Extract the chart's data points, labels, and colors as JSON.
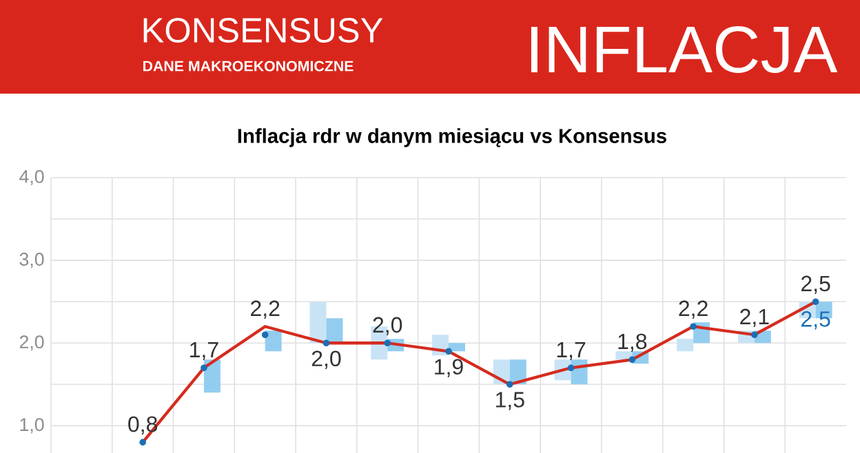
{
  "chart_data": {
    "type": "line",
    "title": "Inflacja rdr w danym miesiącu vs Konsensus",
    "annotations": [
      "KONSENSUSY",
      "DANE MAKROEKONOMICZNE",
      "INFLACJA"
    ],
    "categories": [
      null,
      null,
      null,
      null,
      null,
      null,
      null,
      null,
      null,
      null,
      null,
      null,
      null
    ],
    "ylim": [
      0.67,
      4.0
    ],
    "yticks": [
      {
        "value": 1,
        "label": "1,0"
      },
      {
        "value": 1.5,
        "label": null
      },
      {
        "value": 2,
        "label": "2,0"
      },
      {
        "value": 2.5,
        "label": null
      },
      {
        "value": 3,
        "label": "3,0"
      },
      {
        "value": 3.5,
        "label": null
      },
      {
        "value": 4,
        "label": "4,0"
      }
    ],
    "grid": true,
    "tick_labels": "y",
    "series": [
      {
        "type": "bar",
        "color": "#c9e3f6",
        "base": [
          null,
          null,
          null,
          null,
          2.0,
          1.8,
          1.85,
          1.5,
          1.55,
          1.8,
          1.9,
          2.0,
          2.3
        ],
        "values": [
          null,
          null,
          null,
          null,
          0.5,
          0.4,
          0.25,
          0.3,
          0.25,
          0.1,
          0.15,
          0.15,
          0.2
        ]
      },
      {
        "type": "bar",
        "color": "#92cdf0",
        "base": [
          null,
          null,
          1.4,
          1.9,
          2.0,
          1.9,
          1.9,
          1.5,
          1.5,
          1.75,
          2.0,
          2.0,
          2.3
        ],
        "values": [
          null,
          null,
          0.4,
          0.25,
          0.3,
          0.15,
          0.1,
          0.3,
          0.3,
          0.15,
          0.25,
          0.15,
          0.2
        ]
      },
      {
        "color": "#d52b1e",
        "marker": "none",
        "line_style": "solid",
        "values": [
          null,
          0.8,
          1.7,
          2.2,
          2.0,
          2.0,
          1.9,
          1.5,
          1.7,
          1.8,
          2.2,
          2.1,
          2.5
        ],
        "value_labels": [
          null,
          "0,8",
          "1,7",
          "2,2",
          "2,0",
          "2,0",
          "1,9",
          "1,5",
          "1,7",
          "1,8",
          "2,2",
          "2,1",
          "2,5"
        ]
      },
      {
        "type": "scatter",
        "color": "#1b6eb5",
        "marker": "circle",
        "values": [
          null,
          0.8,
          1.7,
          2.1,
          2.0,
          2.0,
          1.9,
          1.5,
          1.7,
          1.8,
          2.2,
          2.1,
          2.5
        ],
        "value_labels": [
          null,
          null,
          null,
          null,
          null,
          null,
          null,
          null,
          null,
          null,
          null,
          null,
          "2,5"
        ]
      }
    ]
  }
}
